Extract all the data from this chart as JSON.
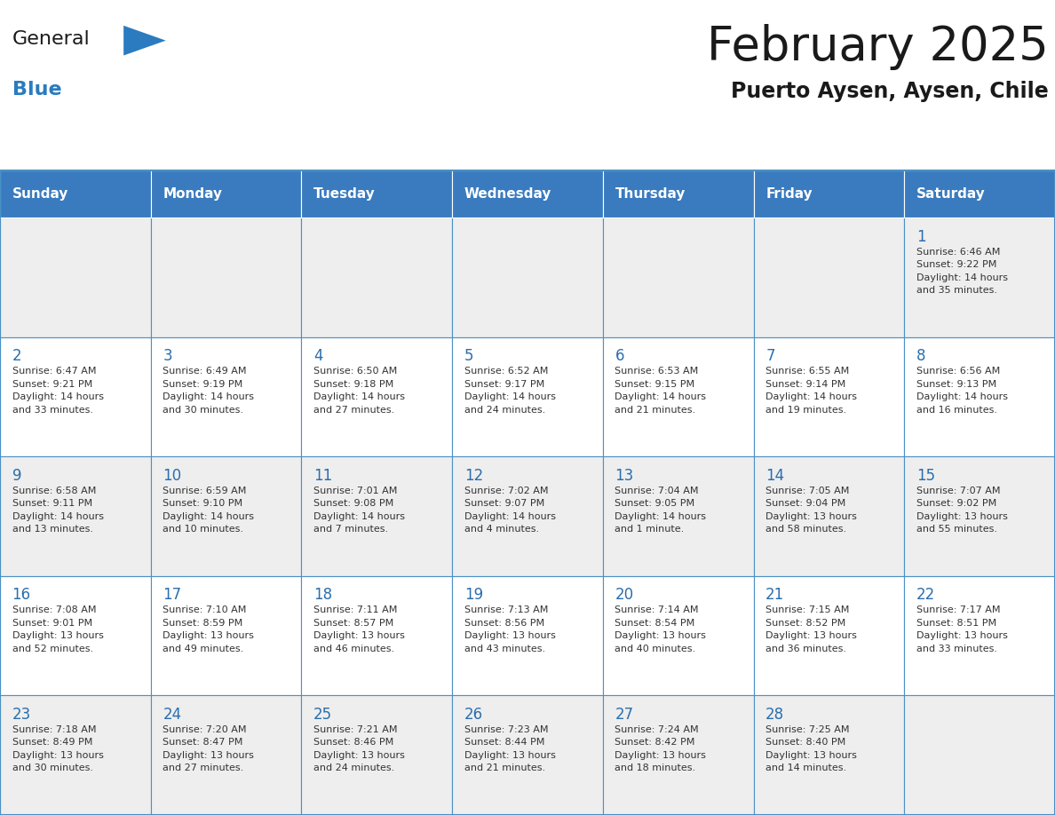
{
  "title": "February 2025",
  "subtitle": "Puerto Aysen, Aysen, Chile",
  "header_bg": "#3a7bbf",
  "header_text": "#ffffff",
  "day_names": [
    "Sunday",
    "Monday",
    "Tuesday",
    "Wednesday",
    "Thursday",
    "Friday",
    "Saturday"
  ],
  "row_bg_odd": "#eeeeee",
  "row_bg_even": "#ffffff",
  "cell_border": "#4a90c4",
  "title_color": "#1a1a1a",
  "subtitle_color": "#1a1a1a",
  "day_num_color": "#2a6ead",
  "cell_text_color": "#333333",
  "logo_general_color": "#1a1a1a",
  "logo_blue_color": "#2a7bbf",
  "weeks": [
    [
      {
        "day": 0,
        "text": ""
      },
      {
        "day": 0,
        "text": ""
      },
      {
        "day": 0,
        "text": ""
      },
      {
        "day": 0,
        "text": ""
      },
      {
        "day": 0,
        "text": ""
      },
      {
        "day": 0,
        "text": ""
      },
      {
        "day": 1,
        "text": "Sunrise: 6:46 AM\nSunset: 9:22 PM\nDaylight: 14 hours\nand 35 minutes."
      }
    ],
    [
      {
        "day": 2,
        "text": "Sunrise: 6:47 AM\nSunset: 9:21 PM\nDaylight: 14 hours\nand 33 minutes."
      },
      {
        "day": 3,
        "text": "Sunrise: 6:49 AM\nSunset: 9:19 PM\nDaylight: 14 hours\nand 30 minutes."
      },
      {
        "day": 4,
        "text": "Sunrise: 6:50 AM\nSunset: 9:18 PM\nDaylight: 14 hours\nand 27 minutes."
      },
      {
        "day": 5,
        "text": "Sunrise: 6:52 AM\nSunset: 9:17 PM\nDaylight: 14 hours\nand 24 minutes."
      },
      {
        "day": 6,
        "text": "Sunrise: 6:53 AM\nSunset: 9:15 PM\nDaylight: 14 hours\nand 21 minutes."
      },
      {
        "day": 7,
        "text": "Sunrise: 6:55 AM\nSunset: 9:14 PM\nDaylight: 14 hours\nand 19 minutes."
      },
      {
        "day": 8,
        "text": "Sunrise: 6:56 AM\nSunset: 9:13 PM\nDaylight: 14 hours\nand 16 minutes."
      }
    ],
    [
      {
        "day": 9,
        "text": "Sunrise: 6:58 AM\nSunset: 9:11 PM\nDaylight: 14 hours\nand 13 minutes."
      },
      {
        "day": 10,
        "text": "Sunrise: 6:59 AM\nSunset: 9:10 PM\nDaylight: 14 hours\nand 10 minutes."
      },
      {
        "day": 11,
        "text": "Sunrise: 7:01 AM\nSunset: 9:08 PM\nDaylight: 14 hours\nand 7 minutes."
      },
      {
        "day": 12,
        "text": "Sunrise: 7:02 AM\nSunset: 9:07 PM\nDaylight: 14 hours\nand 4 minutes."
      },
      {
        "day": 13,
        "text": "Sunrise: 7:04 AM\nSunset: 9:05 PM\nDaylight: 14 hours\nand 1 minute."
      },
      {
        "day": 14,
        "text": "Sunrise: 7:05 AM\nSunset: 9:04 PM\nDaylight: 13 hours\nand 58 minutes."
      },
      {
        "day": 15,
        "text": "Sunrise: 7:07 AM\nSunset: 9:02 PM\nDaylight: 13 hours\nand 55 minutes."
      }
    ],
    [
      {
        "day": 16,
        "text": "Sunrise: 7:08 AM\nSunset: 9:01 PM\nDaylight: 13 hours\nand 52 minutes."
      },
      {
        "day": 17,
        "text": "Sunrise: 7:10 AM\nSunset: 8:59 PM\nDaylight: 13 hours\nand 49 minutes."
      },
      {
        "day": 18,
        "text": "Sunrise: 7:11 AM\nSunset: 8:57 PM\nDaylight: 13 hours\nand 46 minutes."
      },
      {
        "day": 19,
        "text": "Sunrise: 7:13 AM\nSunset: 8:56 PM\nDaylight: 13 hours\nand 43 minutes."
      },
      {
        "day": 20,
        "text": "Sunrise: 7:14 AM\nSunset: 8:54 PM\nDaylight: 13 hours\nand 40 minutes."
      },
      {
        "day": 21,
        "text": "Sunrise: 7:15 AM\nSunset: 8:52 PM\nDaylight: 13 hours\nand 36 minutes."
      },
      {
        "day": 22,
        "text": "Sunrise: 7:17 AM\nSunset: 8:51 PM\nDaylight: 13 hours\nand 33 minutes."
      }
    ],
    [
      {
        "day": 23,
        "text": "Sunrise: 7:18 AM\nSunset: 8:49 PM\nDaylight: 13 hours\nand 30 minutes."
      },
      {
        "day": 24,
        "text": "Sunrise: 7:20 AM\nSunset: 8:47 PM\nDaylight: 13 hours\nand 27 minutes."
      },
      {
        "day": 25,
        "text": "Sunrise: 7:21 AM\nSunset: 8:46 PM\nDaylight: 13 hours\nand 24 minutes."
      },
      {
        "day": 26,
        "text": "Sunrise: 7:23 AM\nSunset: 8:44 PM\nDaylight: 13 hours\nand 21 minutes."
      },
      {
        "day": 27,
        "text": "Sunrise: 7:24 AM\nSunset: 8:42 PM\nDaylight: 13 hours\nand 18 minutes."
      },
      {
        "day": 28,
        "text": "Sunrise: 7:25 AM\nSunset: 8:40 PM\nDaylight: 13 hours\nand 14 minutes."
      },
      {
        "day": 0,
        "text": ""
      }
    ]
  ]
}
